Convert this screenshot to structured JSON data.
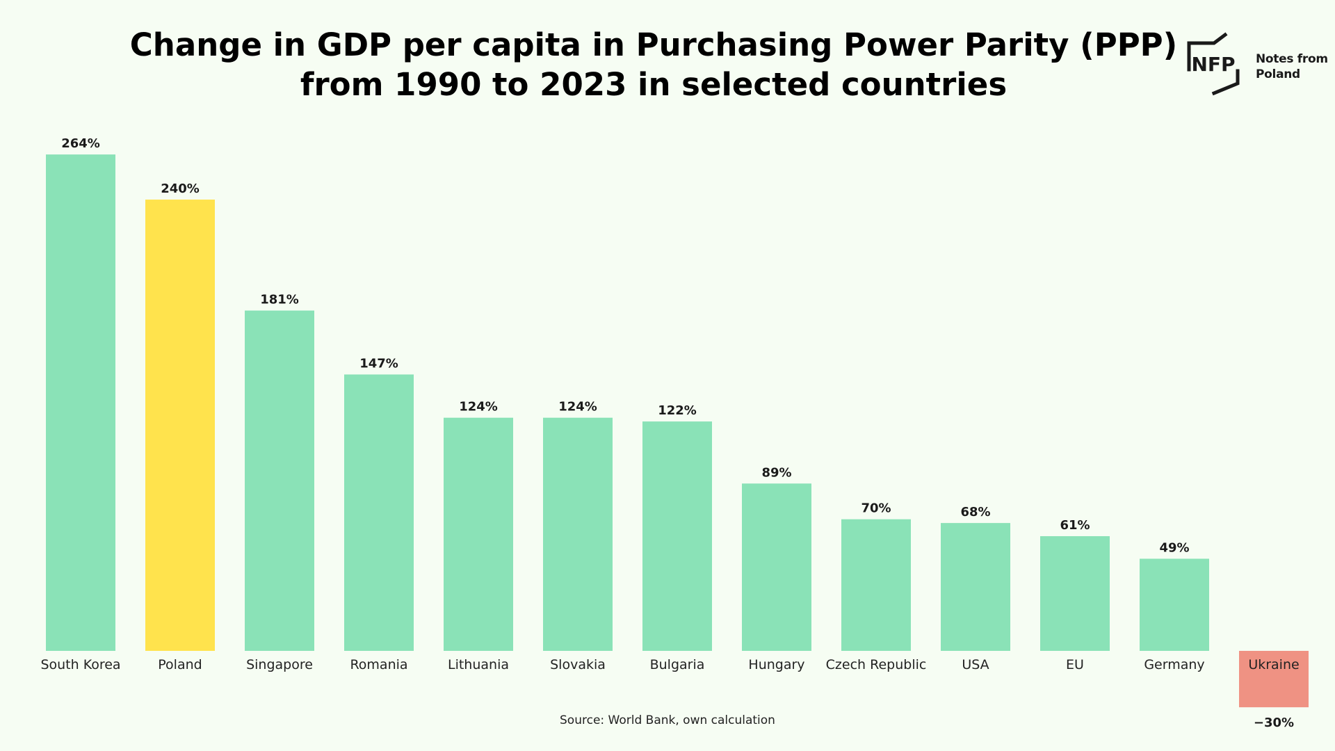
{
  "title_line1": "Change in GDP per capita in Purchasing Power Parity (PPP)",
  "title_line2": "from 1990 to 2023 in selected countries",
  "logo": {
    "mark": "NFP",
    "line1": "Notes from",
    "line2": "Poland"
  },
  "source": "Source: World Bank, own calculation",
  "colors": {
    "default_bar": "#8ae2b7",
    "highlight_bar": "#ffe34d",
    "negative_bar": "#ef9283",
    "label_text": "#222222",
    "value_text": "#1a1a1a",
    "background": "#f6fdf3"
  },
  "chart_data": {
    "type": "bar",
    "title": "Change in GDP per capita in Purchasing Power Parity (PPP) from 1990 to 2023 in selected countries",
    "categories": [
      "South Korea",
      "Poland",
      "Singapore",
      "Romania",
      "Lithuania",
      "Slovakia",
      "Bulgaria",
      "Hungary",
      "Czech Republic",
      "USA",
      "EU",
      "Germany",
      "Ukraine"
    ],
    "values": [
      264,
      240,
      181,
      147,
      124,
      124,
      122,
      89,
      70,
      68,
      61,
      49,
      -30
    ],
    "value_labels": [
      "264%",
      "240%",
      "181%",
      "147%",
      "124%",
      "124%",
      "122%",
      "89%",
      "70%",
      "68%",
      "61%",
      "49%",
      "−30%"
    ],
    "highlight": "Poland",
    "negative_color_category": "Ukraine",
    "unit": "%",
    "ylim": [
      -30,
      264
    ],
    "grid": false,
    "legend": "none",
    "xlabel": "",
    "ylabel": ""
  }
}
